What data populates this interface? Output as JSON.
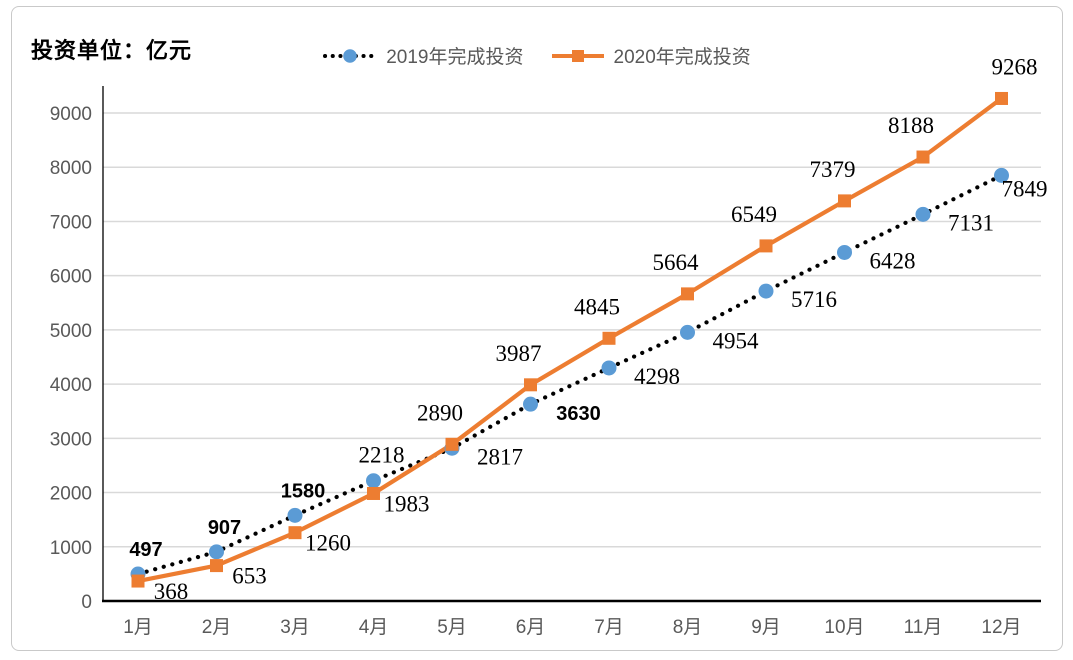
{
  "unit_label": "投资单位：亿元",
  "colors": {
    "blue": "#5B9BD5",
    "orange": "#ED7D31",
    "dotted_line": "#000000",
    "grid": "#D9D9D9",
    "axis": "#000000",
    "tick_text": "#595959",
    "data_label_text": "#000000",
    "legend_text": "#595959",
    "frame_border": "#C9C9C9",
    "background": "#FFFFFF"
  },
  "chart_data": {
    "type": "line",
    "title": "投资单位：亿元",
    "xlabel": "",
    "ylabel": "",
    "categories": [
      "1月",
      "2月",
      "3月",
      "4月",
      "5月",
      "6月",
      "7月",
      "8月",
      "9月",
      "10月",
      "11月",
      "12月"
    ],
    "series": [
      {
        "name": "2019年完成投资",
        "marker": "circle",
        "marker_color": "#5B9BD5",
        "line_style": "dotted",
        "line_color": "#000000",
        "values": [
          497,
          907,
          1580,
          2218,
          2817,
          3630,
          4298,
          4954,
          5716,
          6428,
          7131,
          7849
        ],
        "sans_label_indices": [
          0,
          1,
          2,
          5
        ]
      },
      {
        "name": "2020年完成投资",
        "marker": "square",
        "marker_color": "#ED7D31",
        "line_style": "solid",
        "line_color": "#ED7D31",
        "values": [
          368,
          653,
          1260,
          1983,
          2890,
          3987,
          4845,
          5664,
          6549,
          7379,
          8188,
          9268
        ]
      }
    ],
    "ylim": [
      0,
      9000
    ],
    "ytick_step": 1000,
    "grid": true,
    "legend_position": "top"
  }
}
